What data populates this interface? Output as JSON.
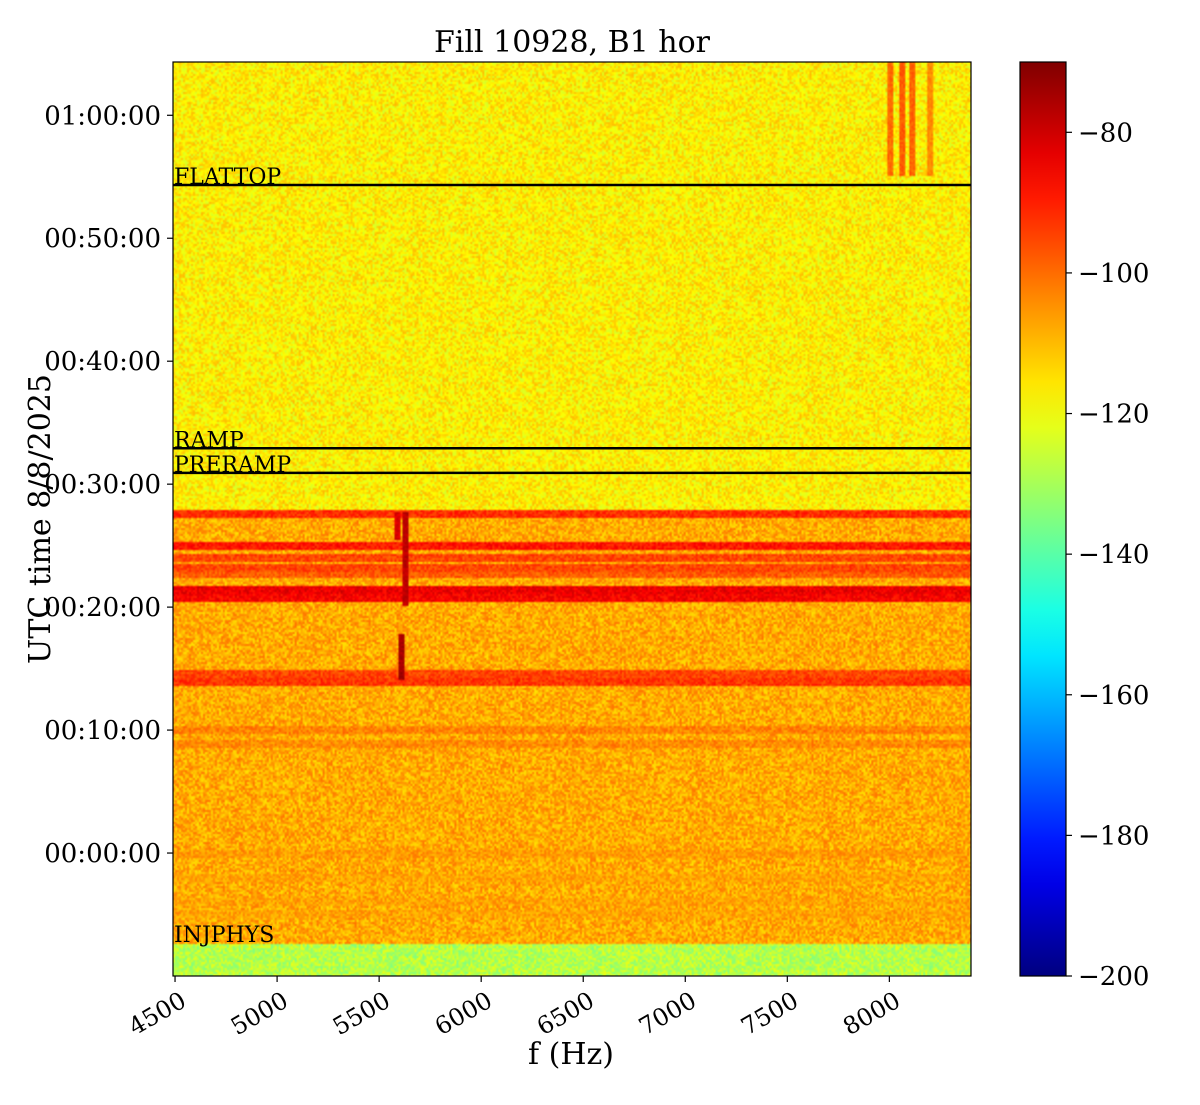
{
  "chart_data": {
    "type": "heatmap",
    "title": "Fill 10928, B1 hor",
    "xlabel": "f (Hz)",
    "ylabel": "UTC time 8/8/2025",
    "xlim": [
      4490,
      8400
    ],
    "ylim": [
      "2025-08-07T23:50:00",
      "2025-08-08T01:04:20"
    ],
    "xticks": [
      4500,
      5000,
      5500,
      6000,
      6500,
      7000,
      7500,
      8000
    ],
    "xtick_labels": [
      "4500",
      "5000",
      "5500",
      "6000",
      "6500",
      "7000",
      "7500",
      "8000"
    ],
    "yticks": [
      "2025-08-08T00:00:00",
      "2025-08-08T00:10:00",
      "2025-08-08T00:20:00",
      "2025-08-08T00:30:00",
      "2025-08-08T00:40:00",
      "2025-08-08T00:50:00",
      "2025-08-08T01:00:00"
    ],
    "ytick_labels": [
      "00:00:00",
      "00:10:00",
      "00:20:00",
      "00:30:00",
      "00:40:00",
      "00:50:00",
      "01:00:00"
    ],
    "colorbar": {
      "colormap": "jet",
      "range": [
        -200,
        -70
      ],
      "ticks": [
        -80,
        -100,
        -120,
        -140,
        -160,
        -180,
        -200
      ],
      "tick_labels": [
        "−80",
        "−100",
        "−120",
        "−140",
        "−160",
        "−180",
        "−200"
      ]
    },
    "markers": [
      {
        "label": "FLATTOP",
        "time": "2025-08-08T00:54:20"
      },
      {
        "label": "RAMP",
        "time": "2025-08-08T00:32:55"
      },
      {
        "label": "PRERAMP",
        "time": "2025-08-08T00:30:55"
      },
      {
        "label": "INJPHYS",
        "time": "2025-08-07T23:52:40"
      }
    ],
    "regions": [
      {
        "from": "2025-08-07T23:50:00",
        "to": "2025-08-07T23:52:40",
        "level": -128
      },
      {
        "from": "2025-08-07T23:52:40",
        "to": "2025-08-08T00:27:45",
        "level": -108
      },
      {
        "from": "2025-08-08T00:27:45",
        "to": "2025-08-08T01:04:20",
        "level": -117
      }
    ],
    "bands": [
      {
        "time": "2025-08-08T00:27:30",
        "level": -92
      },
      {
        "time": "2025-08-08T00:25:00",
        "level": -89
      },
      {
        "time": "2025-08-08T00:24:00",
        "level": -95
      },
      {
        "time": "2025-08-08T00:23:10",
        "level": -95
      },
      {
        "time": "2025-08-08T00:22:40",
        "level": -98
      },
      {
        "time": "2025-08-08T00:21:20",
        "level": -84
      },
      {
        "time": "2025-08-08T00:20:40",
        "level": -86
      },
      {
        "time": "2025-08-08T00:14:30",
        "level": -95
      },
      {
        "time": "2025-08-08T00:13:50",
        "level": -93
      },
      {
        "time": "2025-08-08T00:10:00",
        "level": -103
      },
      {
        "time": "2025-08-08T00:08:50",
        "level": -104
      },
      {
        "time": "2025-08-08T00:00:00",
        "level": -106
      },
      {
        "time": "2025-08-07T23:58:00",
        "level": -107
      },
      {
        "time": "2025-08-07T23:56:00",
        "level": -107
      },
      {
        "time": "2025-08-07T23:55:00",
        "level": -107
      }
    ],
    "spikes": [
      {
        "f": 5610,
        "from": "2025-08-08T00:14:05",
        "to": "2025-08-08T00:17:45",
        "level": -75
      },
      {
        "f": 5630,
        "from": "2025-08-08T00:20:10",
        "to": "2025-08-08T00:27:40",
        "level": -78
      },
      {
        "f": 5590,
        "from": "2025-08-08T00:25:30",
        "to": "2025-08-08T00:27:40",
        "level": -82
      },
      {
        "f": 8000,
        "from": "2025-08-08T00:55:00",
        "to": "2025-08-08T01:04:20",
        "level": -100
      },
      {
        "f": 8060,
        "from": "2025-08-08T00:55:00",
        "to": "2025-08-08T01:04:20",
        "level": -98
      },
      {
        "f": 8110,
        "from": "2025-08-08T00:55:00",
        "to": "2025-08-08T01:04:20",
        "level": -99
      },
      {
        "f": 8200,
        "from": "2025-08-08T00:55:00",
        "to": "2025-08-08T01:04:20",
        "level": -104
      }
    ]
  }
}
